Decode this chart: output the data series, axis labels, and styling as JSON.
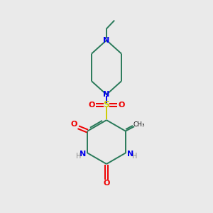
{
  "bg_color": "#eaeaea",
  "bond_color": "#2a7a5a",
  "n_color": "#0000ee",
  "o_color": "#ee0000",
  "s_color": "#cccc00",
  "h_color": "#888888",
  "black_color": "#111111",
  "line_width": 1.4,
  "figsize": [
    3.0,
    3.0
  ],
  "dpi": 100,
  "xlim": [
    0,
    10
  ],
  "ylim": [
    0,
    10
  ]
}
